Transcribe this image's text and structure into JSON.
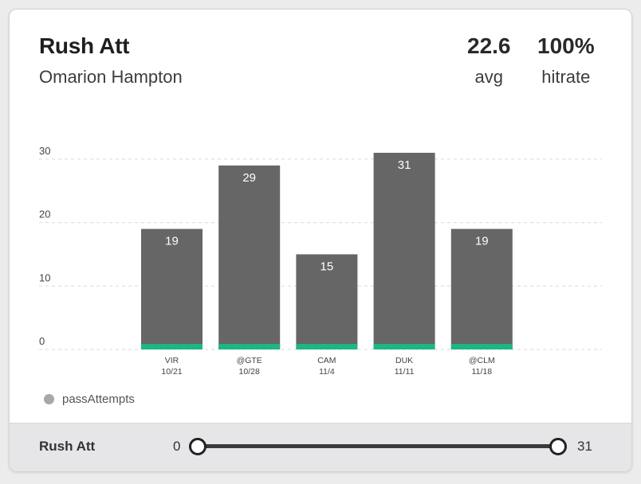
{
  "header": {
    "title": "Rush Att",
    "subtitle": "Omarion Hampton",
    "stats": [
      {
        "value": "22.6",
        "label": "avg"
      },
      {
        "value": "100%",
        "label": "hitrate"
      }
    ]
  },
  "chart_data": {
    "type": "bar",
    "categories": [
      {
        "team": "VIR",
        "date": "10/21"
      },
      {
        "team": "@GTE",
        "date": "10/28"
      },
      {
        "team": "CAM",
        "date": "11/4"
      },
      {
        "team": "DUK",
        "date": "11/11"
      },
      {
        "team": "@CLM",
        "date": "11/18"
      }
    ],
    "values": [
      19,
      29,
      15,
      31,
      19
    ],
    "stacked_series": {
      "name": "passAttempts",
      "values": [
        1,
        1,
        1,
        1,
        1
      ]
    },
    "yticks": [
      "0",
      "10",
      "20",
      "30"
    ],
    "ylim": [
      0,
      31
    ],
    "grid": true,
    "colors": {
      "bar": "#666666",
      "accent": "#1db783",
      "grid": "#d9d9d9"
    }
  },
  "legend": {
    "label": "passAttempts",
    "color": "#a8a8a8"
  },
  "footer": {
    "label": "Rush Att",
    "range_min": "0",
    "range_max": "31",
    "slider_low": 0,
    "slider_high": 1
  }
}
